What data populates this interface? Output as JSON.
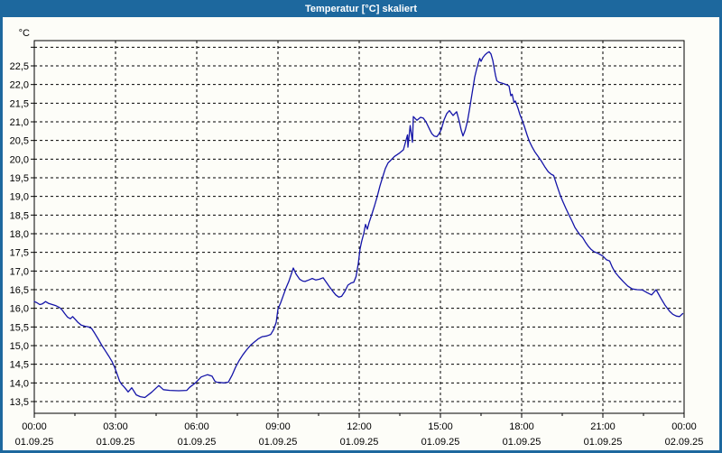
{
  "window": {
    "title": "Temperatur [°C] skaliert",
    "titlebar_color": "#1d689e",
    "border_color": "#1d689e",
    "chart_background": "#fdfdf8"
  },
  "chart_data": {
    "type": "line",
    "title": "Temperatur [°C] skaliert",
    "ylabel": "°C",
    "grid": "dashed both axes",
    "legend": "none",
    "line_color": "#1414a8",
    "axis_color": "#000000",
    "ylim": [
      13.2,
      23.2
    ],
    "xlim_hours": [
      0,
      24
    ],
    "y_ticks": [
      {
        "v": 13.5,
        "label": "13,5"
      },
      {
        "v": 14.0,
        "label": "14,0"
      },
      {
        "v": 14.5,
        "label": "14,5"
      },
      {
        "v": 15.0,
        "label": "15,0"
      },
      {
        "v": 15.5,
        "label": "15,5"
      },
      {
        "v": 16.0,
        "label": "16,0"
      },
      {
        "v": 16.5,
        "label": "16,5"
      },
      {
        "v": 17.0,
        "label": "17,0"
      },
      {
        "v": 17.5,
        "label": "17,5"
      },
      {
        "v": 18.0,
        "label": "18,0"
      },
      {
        "v": 18.5,
        "label": "18,5"
      },
      {
        "v": 19.0,
        "label": "19,0"
      },
      {
        "v": 19.5,
        "label": "19,5"
      },
      {
        "v": 20.0,
        "label": "20,0"
      },
      {
        "v": 20.5,
        "label": "20,5"
      },
      {
        "v": 21.0,
        "label": "21,0"
      },
      {
        "v": 21.5,
        "label": "21,5"
      },
      {
        "v": 22.0,
        "label": "22,0"
      },
      {
        "v": 22.5,
        "label": "22,5"
      },
      {
        "v": 23.0,
        "label": ""
      }
    ],
    "x_ticks": [
      {
        "hour": 0,
        "time": "00:00",
        "date": "01.09.25"
      },
      {
        "hour": 3,
        "time": "03:00",
        "date": "01.09.25"
      },
      {
        "hour": 6,
        "time": "06:00",
        "date": "01.09.25"
      },
      {
        "hour": 9,
        "time": "09:00",
        "date": "01.09.25"
      },
      {
        "hour": 12,
        "time": "12:00",
        "date": "01.09.25"
      },
      {
        "hour": 15,
        "time": "15:00",
        "date": "01.09.25"
      },
      {
        "hour": 18,
        "time": "18:00",
        "date": "01.09.25"
      },
      {
        "hour": 21,
        "time": "21:00",
        "date": "01.09.25"
      },
      {
        "hour": 24,
        "time": "00:00",
        "date": "02.09.25"
      }
    ],
    "minor_tick_interval_hours": 1.5,
    "series": [
      {
        "name": "Temperatur",
        "points_format": "[minutes_since_00:00, deg_C]",
        "points": [
          [
            0,
            16.18
          ],
          [
            6,
            16.15
          ],
          [
            12,
            16.1
          ],
          [
            18,
            16.12
          ],
          [
            25,
            16.18
          ],
          [
            32,
            16.13
          ],
          [
            40,
            16.1
          ],
          [
            48,
            16.07
          ],
          [
            56,
            16.02
          ],
          [
            62,
            15.95
          ],
          [
            68,
            15.85
          ],
          [
            74,
            15.76
          ],
          [
            80,
            15.72
          ],
          [
            85,
            15.78
          ],
          [
            91,
            15.7
          ],
          [
            97,
            15.62
          ],
          [
            104,
            15.55
          ],
          [
            112,
            15.52
          ],
          [
            120,
            15.5
          ],
          [
            127,
            15.46
          ],
          [
            134,
            15.33
          ],
          [
            142,
            15.17
          ],
          [
            150,
            15.0
          ],
          [
            158,
            14.85
          ],
          [
            165,
            14.72
          ],
          [
            172,
            14.58
          ],
          [
            178,
            14.42
          ],
          [
            184,
            14.22
          ],
          [
            189,
            14.05
          ],
          [
            193,
            13.97
          ],
          [
            200,
            13.88
          ],
          [
            208,
            13.76
          ],
          [
            216,
            13.87
          ],
          [
            226,
            13.68
          ],
          [
            235,
            13.63
          ],
          [
            245,
            13.61
          ],
          [
            260,
            13.75
          ],
          [
            276,
            13.93
          ],
          [
            286,
            13.82
          ],
          [
            300,
            13.8
          ],
          [
            320,
            13.79
          ],
          [
            338,
            13.8
          ],
          [
            344,
            13.88
          ],
          [
            357,
            14.0
          ],
          [
            370,
            14.16
          ],
          [
            384,
            14.22
          ],
          [
            394,
            14.18
          ],
          [
            400,
            14.05
          ],
          [
            404,
            14.02
          ],
          [
            420,
            14.0
          ],
          [
            430,
            14.02
          ],
          [
            438,
            14.2
          ],
          [
            446,
            14.42
          ],
          [
            454,
            14.6
          ],
          [
            462,
            14.75
          ],
          [
            470,
            14.88
          ],
          [
            480,
            15.02
          ],
          [
            488,
            15.1
          ],
          [
            496,
            15.18
          ],
          [
            505,
            15.24
          ],
          [
            515,
            15.26
          ],
          [
            524,
            15.3
          ],
          [
            530,
            15.42
          ],
          [
            536,
            15.62
          ],
          [
            540,
            15.98
          ],
          [
            546,
            16.15
          ],
          [
            552,
            16.35
          ],
          [
            558,
            16.55
          ],
          [
            564,
            16.72
          ],
          [
            569,
            16.9
          ],
          [
            574,
            17.08
          ],
          [
            580,
            16.92
          ],
          [
            588,
            16.78
          ],
          [
            595,
            16.73
          ],
          [
            600,
            16.72
          ],
          [
            608,
            16.76
          ],
          [
            616,
            16.8
          ],
          [
            624,
            16.76
          ],
          [
            632,
            16.78
          ],
          [
            640,
            16.82
          ],
          [
            647,
            16.7
          ],
          [
            654,
            16.58
          ],
          [
            660,
            16.48
          ],
          [
            668,
            16.36
          ],
          [
            675,
            16.3
          ],
          [
            681,
            16.32
          ],
          [
            688,
            16.45
          ],
          [
            695,
            16.62
          ],
          [
            702,
            16.68
          ],
          [
            708,
            16.7
          ],
          [
            713,
            16.85
          ],
          [
            718,
            17.2
          ],
          [
            722,
            17.6
          ],
          [
            726,
            17.82
          ],
          [
            730,
            18.0
          ],
          [
            734,
            18.25
          ],
          [
            738,
            18.12
          ],
          [
            742,
            18.3
          ],
          [
            748,
            18.52
          ],
          [
            754,
            18.75
          ],
          [
            760,
            19.0
          ],
          [
            766,
            19.28
          ],
          [
            772,
            19.52
          ],
          [
            778,
            19.75
          ],
          [
            784,
            19.9
          ],
          [
            790,
            19.97
          ],
          [
            798,
            20.07
          ],
          [
            808,
            20.15
          ],
          [
            818,
            20.25
          ],
          [
            828,
            20.32
          ],
          [
            838,
            20.45
          ],
          [
            827,
            20.65
          ],
          [
            833,
            20.9
          ],
          [
            840,
            21.14
          ],
          [
            848,
            21.04
          ],
          [
            856,
            21.12
          ],
          [
            862,
            21.1
          ],
          [
            868,
            21.0
          ],
          [
            876,
            20.8
          ],
          [
            881,
            20.68
          ],
          [
            886,
            20.62
          ],
          [
            892,
            20.6
          ],
          [
            897,
            20.68
          ],
          [
            902,
            20.8
          ],
          [
            908,
            21.05
          ],
          [
            914,
            21.22
          ],
          [
            920,
            21.3
          ],
          [
            928,
            21.17
          ],
          [
            936,
            21.27
          ],
          [
            942,
            21.0
          ],
          [
            946,
            20.78
          ],
          [
            950,
            20.62
          ],
          [
            955,
            20.78
          ],
          [
            960,
            21.02
          ],
          [
            964,
            21.3
          ],
          [
            968,
            21.6
          ],
          [
            972,
            21.9
          ],
          [
            976,
            22.2
          ],
          [
            980,
            22.4
          ],
          [
            984,
            22.58
          ],
          [
            987,
            22.7
          ],
          [
            990,
            22.62
          ],
          [
            994,
            22.72
          ],
          [
            999,
            22.8
          ],
          [
            1004,
            22.85
          ],
          [
            1008,
            22.88
          ],
          [
            1012,
            22.82
          ],
          [
            1016,
            22.65
          ],
          [
            1019,
            22.45
          ],
          [
            1022,
            22.25
          ],
          [
            1025,
            22.1
          ],
          [
            1030,
            22.06
          ],
          [
            1038,
            22.03
          ],
          [
            1046,
            22.0
          ],
          [
            1052,
            21.96
          ],
          [
            1056,
            21.7
          ],
          [
            1059,
            21.74
          ],
          [
            1063,
            21.52
          ],
          [
            1066,
            21.56
          ],
          [
            1072,
            21.36
          ],
          [
            1076,
            21.2
          ],
          [
            1080,
            21.08
          ],
          [
            1086,
            20.88
          ],
          [
            1092,
            20.65
          ],
          [
            1097,
            20.48
          ],
          [
            1103,
            20.33
          ],
          [
            1109,
            20.2
          ],
          [
            1116,
            20.08
          ],
          [
            1123,
            19.96
          ],
          [
            1131,
            19.8
          ],
          [
            1139,
            19.66
          ],
          [
            1145,
            19.6
          ],
          [
            1151,
            19.56
          ],
          [
            1158,
            19.3
          ],
          [
            1165,
            19.05
          ],
          [
            1171,
            18.87
          ],
          [
            1178,
            18.68
          ],
          [
            1185,
            18.5
          ],
          [
            1192,
            18.33
          ],
          [
            1198,
            18.17
          ],
          [
            1204,
            18.06
          ],
          [
            1210,
            17.96
          ],
          [
            1215,
            17.9
          ],
          [
            1221,
            17.78
          ],
          [
            1228,
            17.66
          ],
          [
            1234,
            17.58
          ],
          [
            1240,
            17.52
          ],
          [
            1250,
            17.47
          ],
          [
            1260,
            17.4
          ],
          [
            1268,
            17.3
          ],
          [
            1275,
            17.27
          ],
          [
            1281,
            17.1
          ],
          [
            1287,
            16.97
          ],
          [
            1295,
            16.85
          ],
          [
            1305,
            16.72
          ],
          [
            1315,
            16.6
          ],
          [
            1325,
            16.52
          ],
          [
            1336,
            16.5
          ],
          [
            1348,
            16.49
          ],
          [
            1358,
            16.42
          ],
          [
            1368,
            16.36
          ],
          [
            1378,
            16.5
          ],
          [
            1388,
            16.28
          ],
          [
            1398,
            16.08
          ],
          [
            1408,
            15.92
          ],
          [
            1415,
            15.84
          ],
          [
            1423,
            15.79
          ],
          [
            1430,
            15.78
          ],
          [
            1437,
            15.86
          ]
        ]
      }
    ]
  }
}
